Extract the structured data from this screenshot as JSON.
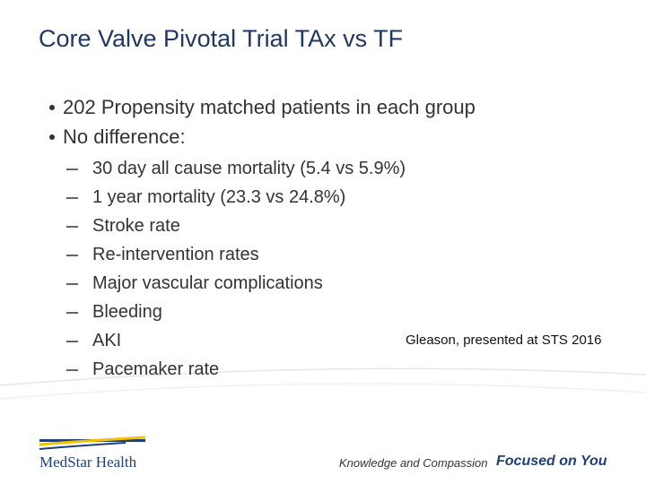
{
  "slide": {
    "title": "Core Valve Pivotal Trial TAx vs TF",
    "bullets": [
      "202 Propensity matched patients in each group",
      "No difference:"
    ],
    "sub_bullets": [
      "30 day all cause mortality (5.4 vs 5.9%)",
      "1 year mortality (23.3 vs 24.8%)",
      "Stroke rate",
      "Re-intervention rates",
      "Major vascular complications",
      "Bleeding",
      "AKI",
      "Pacemaker rate"
    ],
    "citation": "Gleason, presented at STS 2016",
    "footer": {
      "logo": "MedStar Health",
      "tagline": "Knowledge and Compassion",
      "slogan": "Focused on You"
    }
  }
}
